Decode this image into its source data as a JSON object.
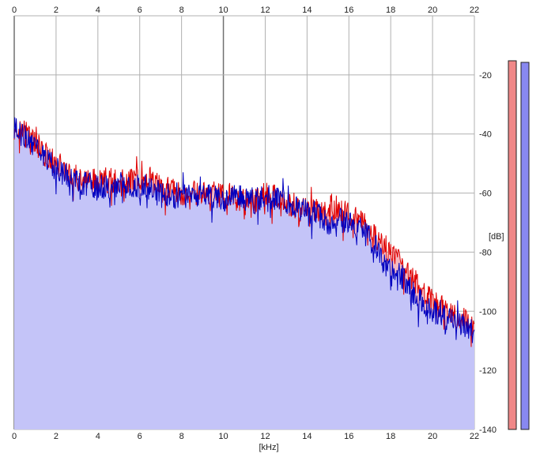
{
  "chart_data": {
    "type": "area",
    "xlabel": "[kHz]",
    "ylabel": "[dB]",
    "xlim": [
      0,
      22
    ],
    "ylim": [
      -140,
      0
    ],
    "x_ticks": [
      0,
      2,
      4,
      6,
      8,
      10,
      12,
      14,
      16,
      18,
      20,
      22
    ],
    "y_ticks": [
      -20,
      -40,
      -60,
      -80,
      -100,
      -120,
      -140
    ],
    "grid": true,
    "colors": {
      "red": "#e00000",
      "blue": "#0000c0",
      "area": "#c4c4f8",
      "red_area": "#f4b8c0",
      "meter_left": "#f08888",
      "meter_right": "#8888f0"
    },
    "series": [
      {
        "color": "red",
        "x": [
          0,
          0.5,
          1,
          1.5,
          2,
          2.5,
          3,
          3.5,
          4,
          4.5,
          5,
          5.5,
          6,
          6.5,
          7,
          7.5,
          8,
          8.5,
          9,
          9.5,
          10,
          10.5,
          11,
          11.5,
          12,
          12.5,
          13,
          13.5,
          14,
          14.5,
          15,
          15.5,
          16,
          16.5,
          17,
          17.5,
          18,
          18.5,
          19,
          19.5,
          20,
          20.5,
          21,
          21.5,
          22
        ],
        "y": [
          -40,
          -38,
          -43,
          -47,
          -50,
          -52,
          -54,
          -56,
          -55,
          -56,
          -56,
          -56,
          -55,
          -55,
          -58,
          -59,
          -60,
          -60,
          -60,
          -60,
          -61,
          -60,
          -61,
          -63,
          -60,
          -61,
          -63,
          -65,
          -65,
          -66,
          -67,
          -66,
          -67,
          -69,
          -72,
          -77,
          -81,
          -84,
          -89,
          -93,
          -97,
          -99,
          -101,
          -103,
          -105
        ]
      },
      {
        "color": "blue",
        "x": [
          0,
          0.5,
          1,
          1.5,
          2,
          2.5,
          3,
          3.5,
          4,
          4.5,
          5,
          5.5,
          6,
          6.5,
          7,
          7.5,
          8,
          8.5,
          9,
          9.5,
          10,
          10.5,
          11,
          11.5,
          12,
          12.5,
          13,
          13.5,
          14,
          14.5,
          15,
          15.5,
          16,
          16.5,
          17,
          17.5,
          18,
          18.5,
          19,
          19.5,
          20,
          20.5,
          21,
          21.5,
          22
        ],
        "y": [
          -38,
          -41,
          -45,
          -48,
          -52,
          -54,
          -56,
          -57,
          -58,
          -58,
          -57,
          -57,
          -58,
          -58,
          -60,
          -61,
          -61,
          -61,
          -60,
          -61,
          -62,
          -61,
          -61,
          -63,
          -61,
          -62,
          -63,
          -65,
          -66,
          -67,
          -70,
          -69,
          -70,
          -72,
          -75,
          -80,
          -85,
          -88,
          -93,
          -97,
          -100,
          -101,
          -103,
          -105,
          -107
        ]
      }
    ]
  }
}
